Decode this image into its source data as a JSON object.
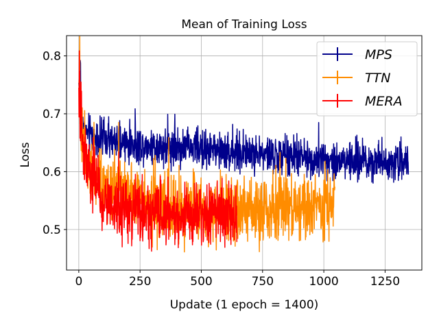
{
  "chart_data": {
    "type": "line",
    "title": "Mean of Training Loss",
    "xlabel": "Update (1 epoch = 1400)",
    "ylabel": "Loss",
    "xlim": [
      -50,
      1400
    ],
    "ylim": [
      0.43,
      0.835
    ],
    "xticks": [
      0,
      250,
      500,
      750,
      1000,
      1250
    ],
    "yticks": [
      0.5,
      0.6,
      0.7,
      0.8
    ],
    "grid": true,
    "legend": {
      "placement": "top-right"
    },
    "series": [
      {
        "name": "MPS",
        "color": "#00008b",
        "x": [
          0,
          5,
          10,
          20,
          40,
          70,
          100,
          150,
          200,
          250,
          300,
          400,
          500,
          600,
          700,
          800,
          900,
          1000,
          1100,
          1200,
          1300,
          1345
        ],
        "y": [
          0.745,
          0.79,
          0.7,
          0.67,
          0.665,
          0.66,
          0.655,
          0.65,
          0.648,
          0.646,
          0.645,
          0.643,
          0.64,
          0.635,
          0.632,
          0.628,
          0.625,
          0.622,
          0.62,
          0.619,
          0.618,
          0.618
        ],
        "noise": 0.016
      },
      {
        "name": "TTN",
        "color": "#ff8c00",
        "x": [
          0,
          5,
          10,
          20,
          40,
          70,
          100,
          150,
          200,
          250,
          300,
          400,
          500,
          600,
          650,
          700,
          800,
          900,
          1000,
          1045
        ],
        "y": [
          0.76,
          0.72,
          0.67,
          0.645,
          0.625,
          0.6,
          0.58,
          0.565,
          0.555,
          0.548,
          0.545,
          0.54,
          0.538,
          0.535,
          0.535,
          0.535,
          0.536,
          0.538,
          0.537,
          0.535
        ],
        "noise": 0.028
      },
      {
        "name": "MERA",
        "color": "#ff0000",
        "x": [
          0,
          5,
          10,
          20,
          40,
          70,
          100,
          150,
          200,
          250,
          300,
          400,
          500,
          600,
          645
        ],
        "y": [
          0.765,
          0.7,
          0.665,
          0.635,
          0.61,
          0.575,
          0.553,
          0.54,
          0.532,
          0.53,
          0.528,
          0.527,
          0.527,
          0.527,
          0.525
        ],
        "noise": 0.026
      }
    ]
  }
}
